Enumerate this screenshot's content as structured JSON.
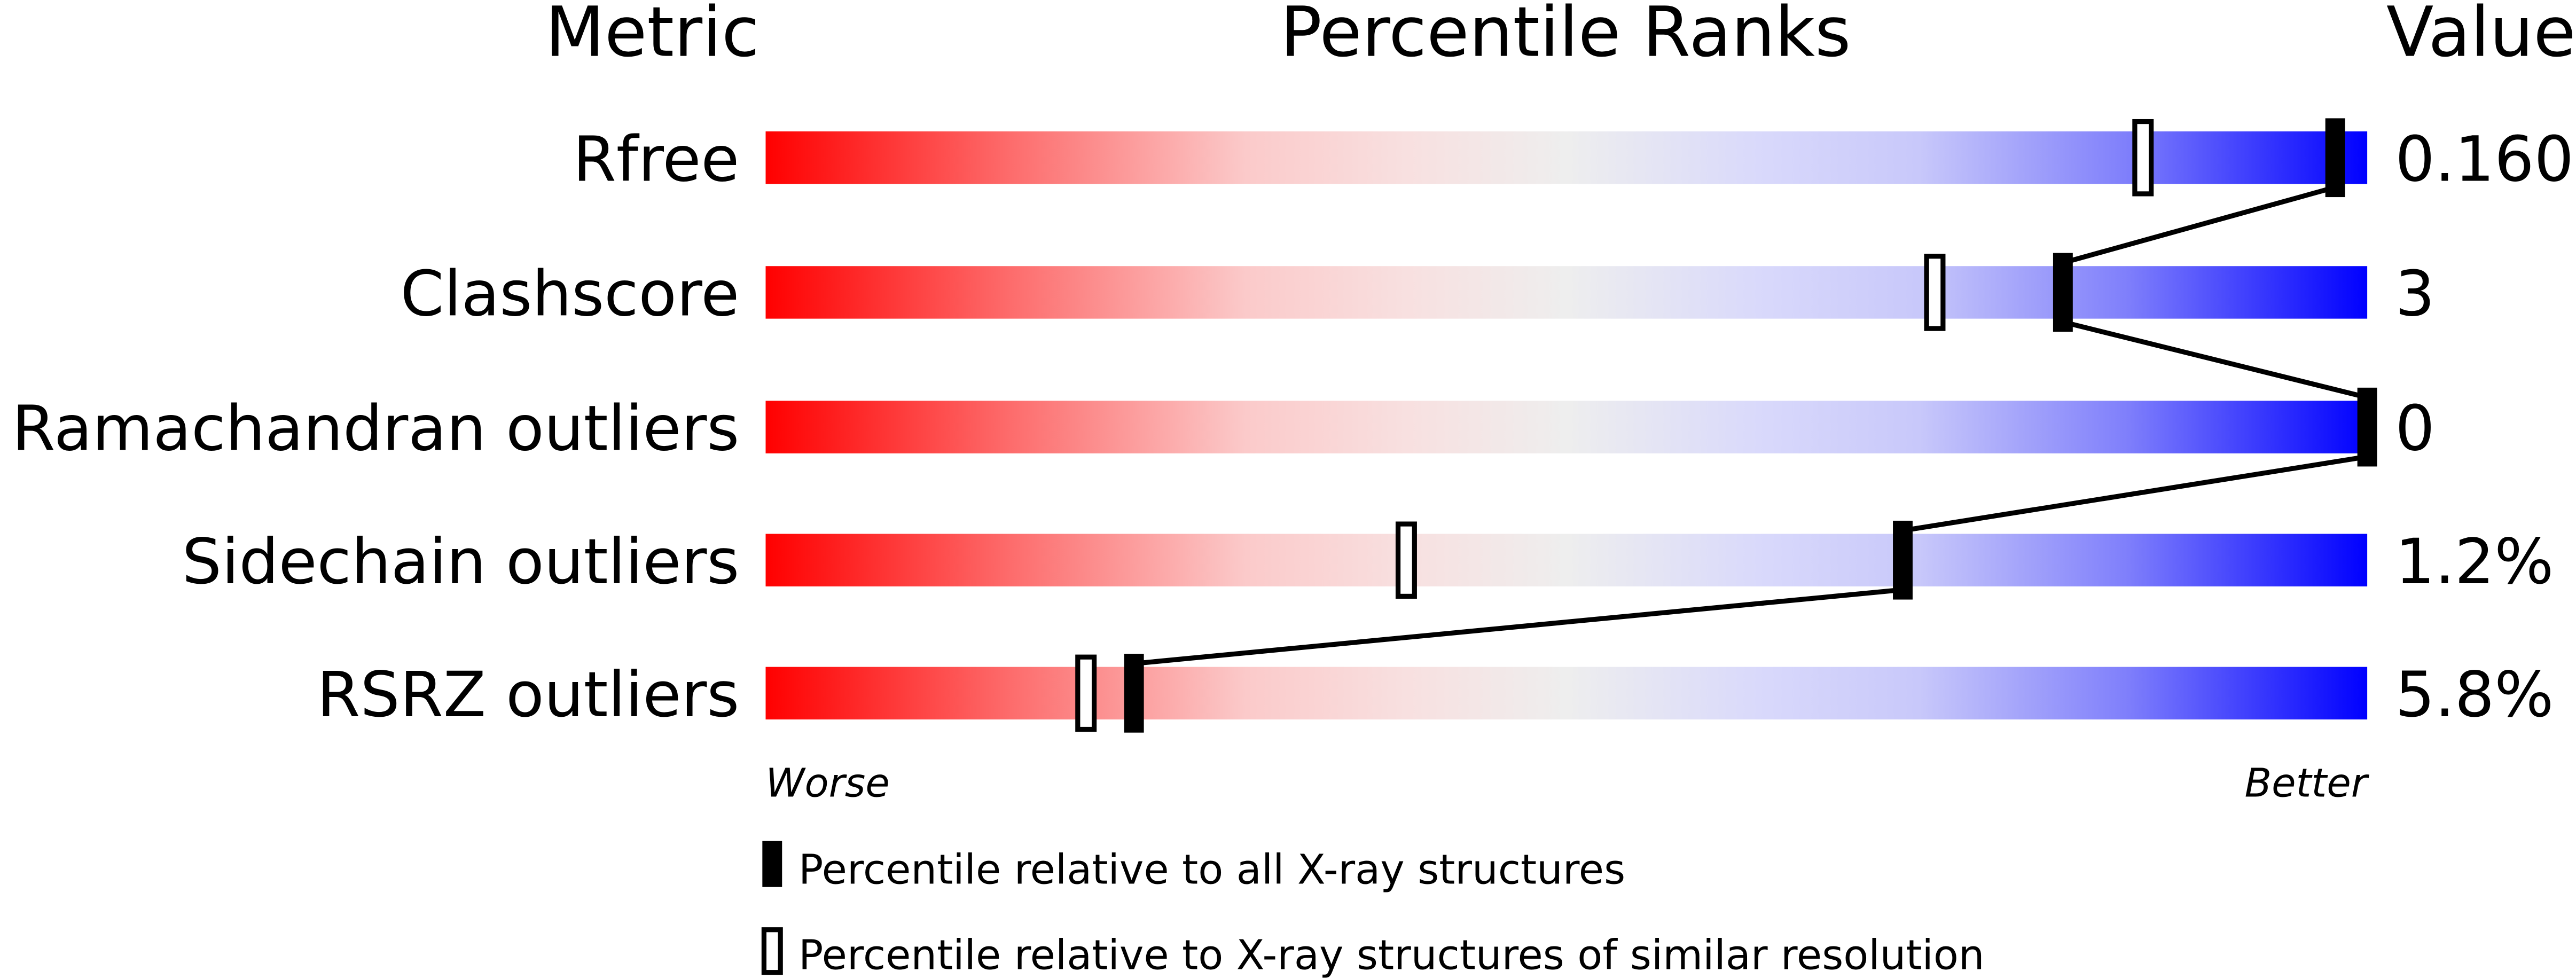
{
  "chart_data": {
    "type": "percentile-bar",
    "headers": {
      "metric": "Metric",
      "ranks": "Percentile Ranks",
      "value": "Value"
    },
    "axis": {
      "left": "Worse",
      "right": "Better",
      "range": [
        0,
        100
      ]
    },
    "rows": [
      {
        "metric": "Rfree",
        "value": "0.160",
        "percentile_all": 98,
        "percentile_similar": 86
      },
      {
        "metric": "Clashscore",
        "value": "3",
        "percentile_all": 81,
        "percentile_similar": 73
      },
      {
        "metric": "Ramachandran outliers",
        "value": "0",
        "percentile_all": 100,
        "percentile_similar": 100
      },
      {
        "metric": "Sidechain outliers",
        "value": "1.2%",
        "percentile_all": 71,
        "percentile_similar": 40
      },
      {
        "metric": "RSRZ outliers",
        "value": "5.8%",
        "percentile_all": 23,
        "percentile_similar": 20
      }
    ],
    "legend": [
      {
        "marker": "filled",
        "label": "Percentile relative to all X-ray structures"
      },
      {
        "marker": "hollow",
        "label": "Percentile relative to X-ray structures of similar resolution"
      }
    ],
    "colors": {
      "worse": "#ff0000",
      "middle": "#eeeeee",
      "better": "#0000ff",
      "marker": "#000000"
    }
  }
}
